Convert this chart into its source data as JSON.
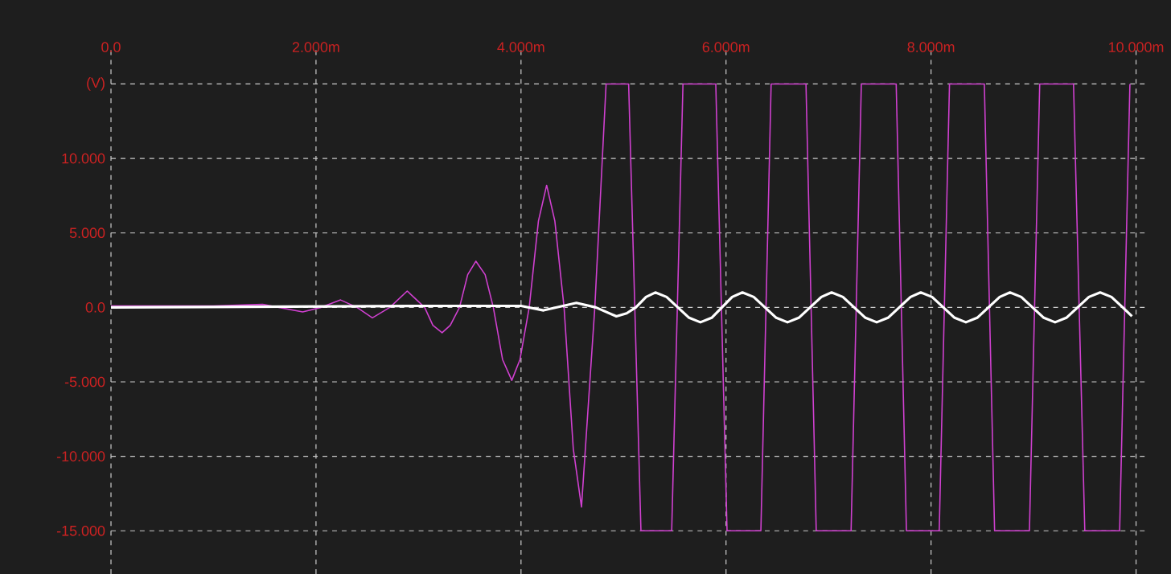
{
  "chart_data": {
    "type": "line",
    "xlim": [
      0,
      10.09
    ],
    "ylim": [
      -17.9,
      17.4
    ],
    "xticks": [
      {
        "value": 0,
        "label": "0.0"
      },
      {
        "value": 2,
        "label": "2.000m"
      },
      {
        "value": 4,
        "label": "4.000m"
      },
      {
        "value": 6,
        "label": "6.000m"
      },
      {
        "value": 8,
        "label": "8.000m"
      },
      {
        "value": 10,
        "label": "10.000m"
      }
    ],
    "yticks": [
      {
        "value": -15,
        "label": "-15.000"
      },
      {
        "value": -10,
        "label": "-10.000"
      },
      {
        "value": -5,
        "label": "-5.000"
      },
      {
        "value": 0,
        "label": "0.0"
      },
      {
        "value": 5,
        "label": "5.000"
      },
      {
        "value": 10,
        "label": "10.000"
      },
      {
        "value": 15,
        "label": "(V)"
      }
    ],
    "grid": true,
    "series": [
      {
        "color": "#d040d0",
        "x": [
          0,
          1.0,
          1.48,
          1.87,
          2.05,
          2.24,
          2.4,
          2.55,
          2.72,
          2.89,
          3.06,
          3.14,
          3.23,
          3.31,
          3.4,
          3.48,
          3.56,
          3.65,
          3.73,
          3.82,
          3.91,
          3.99,
          4.08,
          4.17,
          4.25,
          4.33,
          4.42,
          4.51,
          4.59,
          4.72,
          4.83,
          5.05,
          5.17,
          5.47,
          5.58,
          5.9,
          6.01,
          6.34,
          6.44,
          6.78,
          6.88,
          7.22,
          7.32,
          7.66,
          7.76,
          8.08,
          8.18,
          8.52,
          8.62,
          8.96,
          9.06,
          9.39,
          9.5,
          9.84,
          9.94
        ],
        "values": [
          0.1,
          0.1,
          0.2,
          -0.3,
          0.0,
          0.5,
          0,
          -0.7,
          0,
          1.1,
          0,
          -1.2,
          -1.7,
          -1.2,
          0,
          2.2,
          3.1,
          2.2,
          0,
          -3.5,
          -4.9,
          -3.5,
          0,
          5.8,
          8.2,
          5.8,
          0,
          -9.5,
          -13.4,
          0,
          15,
          15,
          -15,
          -15,
          15,
          15,
          -15,
          -15,
          15,
          15,
          -15,
          -15,
          15,
          15,
          -15,
          -15,
          15,
          15,
          -15,
          -15,
          15,
          15,
          -15,
          -15,
          15
        ]
      },
      {
        "color": "#ffffff",
        "x": [
          0,
          3.0,
          4.0,
          4.22,
          4.54,
          4.73,
          4.93,
          5.03,
          5.12,
          5.22,
          5.31,
          5.42,
          5.53,
          5.64,
          5.75,
          5.86,
          5.96,
          6.06,
          6.16,
          6.27,
          6.38,
          6.49,
          6.6,
          6.71,
          6.82,
          6.93,
          7.03,
          7.14,
          7.25,
          7.36,
          7.47,
          7.58,
          7.69,
          7.8,
          7.9,
          8.01,
          8.12,
          8.23,
          8.34,
          8.45,
          8.56,
          8.67,
          8.77,
          8.88,
          8.99,
          9.1,
          9.21,
          9.32,
          9.43,
          9.54,
          9.65,
          9.76,
          9.87,
          9.96
        ],
        "values": [
          0,
          0.1,
          0.1,
          -0.2,
          0.3,
          0,
          -0.6,
          -0.4,
          0,
          0.7,
          1.0,
          0.7,
          0,
          -0.7,
          -1.0,
          -0.7,
          0,
          0.7,
          1.0,
          0.7,
          0,
          -0.7,
          -1.0,
          -0.7,
          0,
          0.7,
          1.0,
          0.7,
          0,
          -0.7,
          -1.0,
          -0.7,
          0,
          0.7,
          1.0,
          0.7,
          0,
          -0.7,
          -1.0,
          -0.7,
          0,
          0.7,
          1.0,
          0.7,
          0,
          -0.7,
          -1.0,
          -0.7,
          0,
          0.7,
          1.0,
          0.7,
          0,
          -0.6
        ]
      }
    ]
  }
}
